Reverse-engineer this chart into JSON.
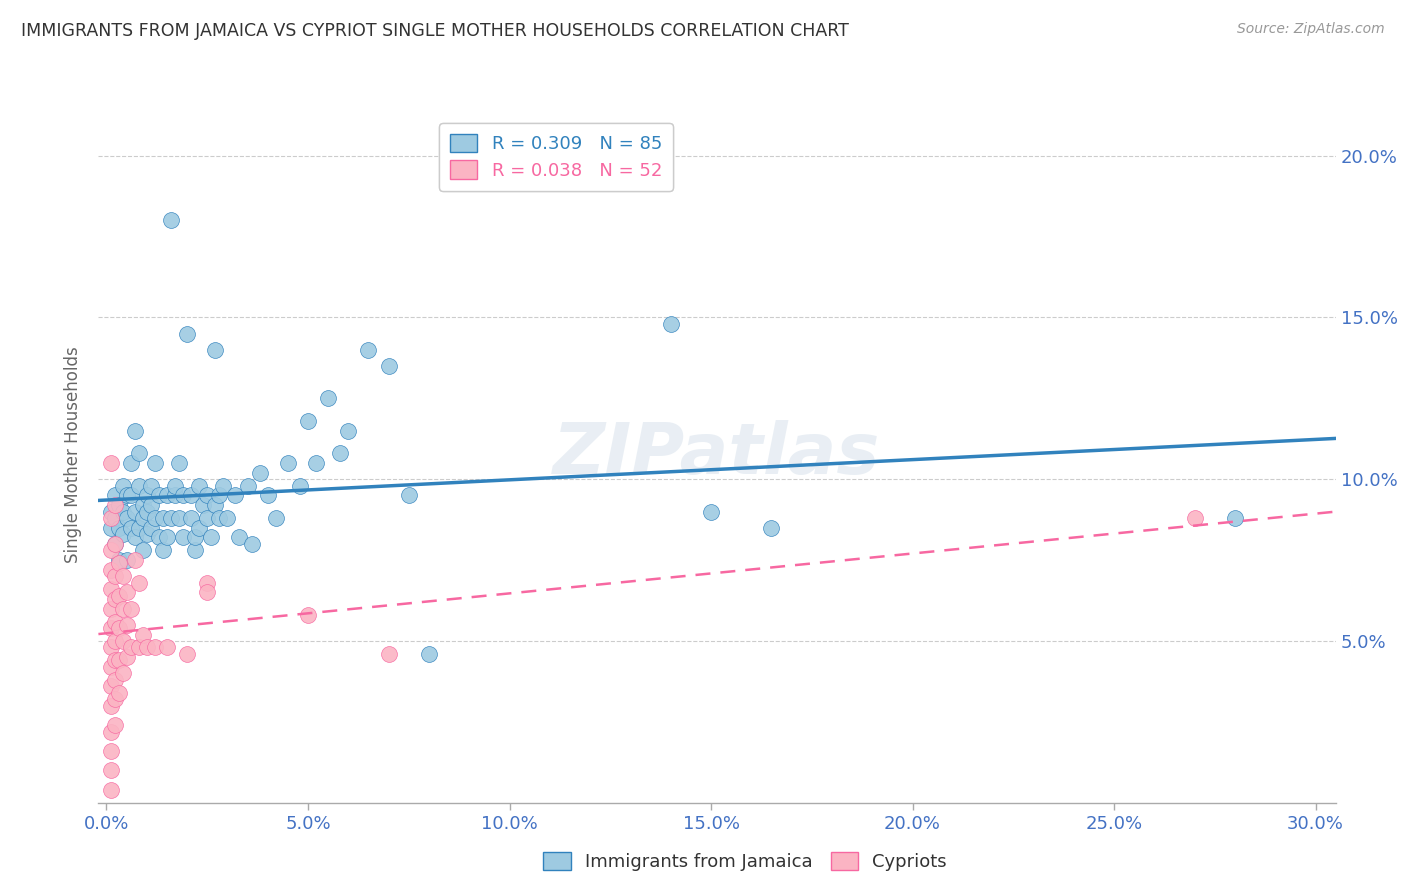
{
  "title": "IMMIGRANTS FROM JAMAICA VS CYPRIOT SINGLE MOTHER HOUSEHOLDS CORRELATION CHART",
  "source": "Source: ZipAtlas.com",
  "xlabel_vals": [
    0.0,
    0.05,
    0.1,
    0.15,
    0.2,
    0.25,
    0.3
  ],
  "ylabel": "Single Mother Households",
  "ylabel_vals": [
    0.05,
    0.1,
    0.15,
    0.2
  ],
  "xlim": [
    -0.002,
    0.305
  ],
  "ylim": [
    0.0,
    0.215
  ],
  "legend_labels_bottom": [
    "Immigrants from Jamaica",
    "Cypriots"
  ],
  "blue_scatter": [
    [
      0.001,
      0.085
    ],
    [
      0.001,
      0.09
    ],
    [
      0.002,
      0.095
    ],
    [
      0.002,
      0.08
    ],
    [
      0.002,
      0.088
    ],
    [
      0.003,
      0.075
    ],
    [
      0.003,
      0.092
    ],
    [
      0.003,
      0.085
    ],
    [
      0.004,
      0.098
    ],
    [
      0.004,
      0.09
    ],
    [
      0.004,
      0.083
    ],
    [
      0.005,
      0.095
    ],
    [
      0.005,
      0.075
    ],
    [
      0.005,
      0.088
    ],
    [
      0.006,
      0.095
    ],
    [
      0.006,
      0.085
    ],
    [
      0.006,
      0.105
    ],
    [
      0.007,
      0.115
    ],
    [
      0.007,
      0.082
    ],
    [
      0.007,
      0.09
    ],
    [
      0.008,
      0.098
    ],
    [
      0.008,
      0.108
    ],
    [
      0.008,
      0.085
    ],
    [
      0.009,
      0.078
    ],
    [
      0.009,
      0.092
    ],
    [
      0.009,
      0.088
    ],
    [
      0.01,
      0.095
    ],
    [
      0.01,
      0.083
    ],
    [
      0.01,
      0.09
    ],
    [
      0.011,
      0.098
    ],
    [
      0.011,
      0.085
    ],
    [
      0.011,
      0.092
    ],
    [
      0.012,
      0.105
    ],
    [
      0.012,
      0.088
    ],
    [
      0.013,
      0.082
    ],
    [
      0.013,
      0.095
    ],
    [
      0.014,
      0.078
    ],
    [
      0.014,
      0.088
    ],
    [
      0.015,
      0.095
    ],
    [
      0.015,
      0.082
    ],
    [
      0.016,
      0.18
    ],
    [
      0.016,
      0.088
    ],
    [
      0.017,
      0.095
    ],
    [
      0.017,
      0.098
    ],
    [
      0.018,
      0.105
    ],
    [
      0.018,
      0.088
    ],
    [
      0.019,
      0.082
    ],
    [
      0.019,
      0.095
    ],
    [
      0.02,
      0.145
    ],
    [
      0.021,
      0.088
    ],
    [
      0.021,
      0.095
    ],
    [
      0.022,
      0.078
    ],
    [
      0.022,
      0.082
    ],
    [
      0.023,
      0.085
    ],
    [
      0.023,
      0.098
    ],
    [
      0.024,
      0.092
    ],
    [
      0.025,
      0.088
    ],
    [
      0.025,
      0.095
    ],
    [
      0.026,
      0.082
    ],
    [
      0.027,
      0.092
    ],
    [
      0.027,
      0.14
    ],
    [
      0.028,
      0.088
    ],
    [
      0.028,
      0.095
    ],
    [
      0.029,
      0.098
    ],
    [
      0.03,
      0.088
    ],
    [
      0.032,
      0.095
    ],
    [
      0.033,
      0.082
    ],
    [
      0.035,
      0.098
    ],
    [
      0.036,
      0.08
    ],
    [
      0.038,
      0.102
    ],
    [
      0.04,
      0.095
    ],
    [
      0.042,
      0.088
    ],
    [
      0.045,
      0.105
    ],
    [
      0.048,
      0.098
    ],
    [
      0.05,
      0.118
    ],
    [
      0.052,
      0.105
    ],
    [
      0.055,
      0.125
    ],
    [
      0.058,
      0.108
    ],
    [
      0.06,
      0.115
    ],
    [
      0.065,
      0.14
    ],
    [
      0.07,
      0.135
    ],
    [
      0.075,
      0.095
    ],
    [
      0.08,
      0.046
    ],
    [
      0.14,
      0.148
    ],
    [
      0.15,
      0.09
    ],
    [
      0.165,
      0.085
    ],
    [
      0.28,
      0.088
    ]
  ],
  "pink_scatter": [
    [
      0.001,
      0.105
    ],
    [
      0.001,
      0.088
    ],
    [
      0.001,
      0.078
    ],
    [
      0.001,
      0.072
    ],
    [
      0.001,
      0.066
    ],
    [
      0.001,
      0.06
    ],
    [
      0.001,
      0.054
    ],
    [
      0.001,
      0.048
    ],
    [
      0.001,
      0.042
    ],
    [
      0.001,
      0.036
    ],
    [
      0.001,
      0.03
    ],
    [
      0.001,
      0.022
    ],
    [
      0.001,
      0.016
    ],
    [
      0.001,
      0.01
    ],
    [
      0.001,
      0.004
    ],
    [
      0.002,
      0.092
    ],
    [
      0.002,
      0.08
    ],
    [
      0.002,
      0.07
    ],
    [
      0.002,
      0.063
    ],
    [
      0.002,
      0.056
    ],
    [
      0.002,
      0.05
    ],
    [
      0.002,
      0.044
    ],
    [
      0.002,
      0.038
    ],
    [
      0.002,
      0.032
    ],
    [
      0.002,
      0.024
    ],
    [
      0.003,
      0.074
    ],
    [
      0.003,
      0.064
    ],
    [
      0.003,
      0.054
    ],
    [
      0.003,
      0.044
    ],
    [
      0.003,
      0.034
    ],
    [
      0.004,
      0.07
    ],
    [
      0.004,
      0.06
    ],
    [
      0.004,
      0.05
    ],
    [
      0.004,
      0.04
    ],
    [
      0.005,
      0.065
    ],
    [
      0.005,
      0.055
    ],
    [
      0.005,
      0.045
    ],
    [
      0.006,
      0.06
    ],
    [
      0.006,
      0.048
    ],
    [
      0.007,
      0.075
    ],
    [
      0.008,
      0.048
    ],
    [
      0.008,
      0.068
    ],
    [
      0.009,
      0.052
    ],
    [
      0.01,
      0.048
    ],
    [
      0.012,
      0.048
    ],
    [
      0.015,
      0.048
    ],
    [
      0.02,
      0.046
    ],
    [
      0.025,
      0.068
    ],
    [
      0.025,
      0.065
    ],
    [
      0.05,
      0.058
    ],
    [
      0.07,
      0.046
    ],
    [
      0.27,
      0.088
    ]
  ],
  "blue_line_color": "#3182bd",
  "pink_line_color": "#f768a1",
  "blue_scatter_color": "#9ecae1",
  "pink_scatter_color": "#fbb4c3",
  "grid_color": "#cccccc",
  "axis_label_color": "#4472c4",
  "background_color": "#ffffff"
}
